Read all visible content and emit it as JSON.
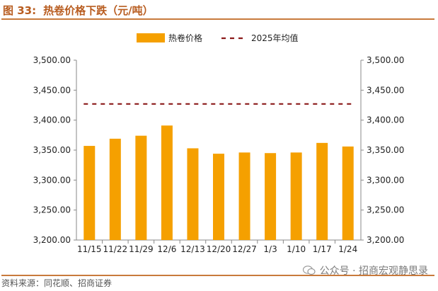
{
  "figure": {
    "label": "图 33:",
    "title": "热卷价格下跌（元/吨）",
    "source": "资料来源：同花顺、招商证券",
    "watermark": "公众号 · 招商宏观静思录"
  },
  "colors": {
    "bar": "#f5a000",
    "avg_line": "#8b1a1a",
    "title": "#b85c1f",
    "rule": "#c87a3c",
    "axis": "#888888"
  },
  "chart_data": {
    "type": "bar",
    "title": "热卷价格下跌（元/吨）",
    "categories": [
      "11/15",
      "11/22",
      "11/29",
      "12/6",
      "12/13",
      "12/20",
      "12/27",
      "1/3",
      "1/10",
      "1/17",
      "1/24"
    ],
    "series": [
      {
        "name": "热卷价格",
        "type": "bar",
        "values": [
          3357,
          3369,
          3374,
          3391,
          3353,
          3344,
          3346,
          3345,
          3346,
          3362,
          3356
        ]
      },
      {
        "name": "2025年均值",
        "type": "dashed-line",
        "value": 3427
      }
    ],
    "ylim": [
      3200,
      3500
    ],
    "ytick_labels": [
      "3,200.00",
      "3,250.00",
      "3,300.00",
      "3,350.00",
      "3,400.00",
      "3,450.00",
      "3,500.00"
    ],
    "y_right_tick_labels": [
      "3,200.00",
      "3,250.00",
      "3,300.00",
      "3,350.00",
      "3,400.00",
      "3,450.00",
      "3,500.00"
    ],
    "legend_position": "top-center",
    "grid": false,
    "xlabel": "",
    "ylabel": ""
  }
}
